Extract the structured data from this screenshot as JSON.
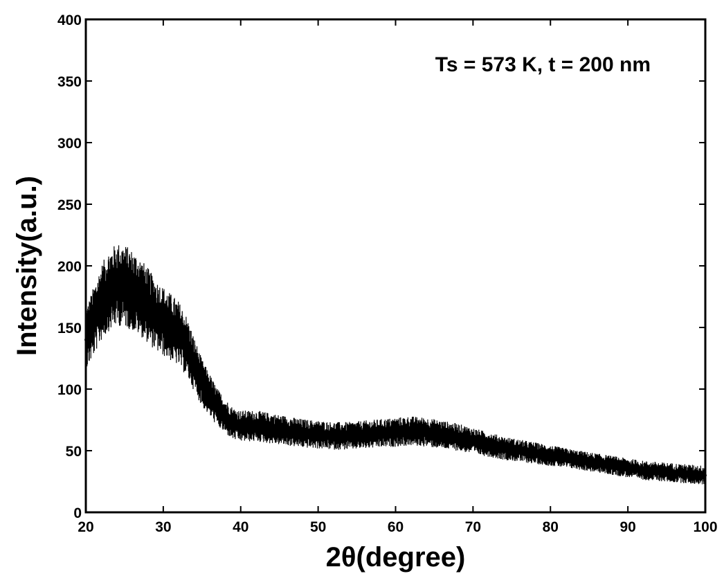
{
  "chart_data": {
    "type": "line",
    "title": "",
    "annotation": "Ts = 573 K, t = 200 nm",
    "xlabel": "2θ(degree)",
    "ylabel": "Intensity(a.u.)",
    "xlim": [
      20,
      100
    ],
    "ylim": [
      0,
      400
    ],
    "xticks": [
      20,
      30,
      40,
      50,
      60,
      70,
      80,
      90,
      100
    ],
    "yticks": [
      0,
      50,
      100,
      150,
      200,
      250,
      300,
      350,
      400
    ],
    "grid": false,
    "legend": "none",
    "series": [
      {
        "color": "#000000",
        "note_style": "noisy XRD trace",
        "x": [
          20,
          21,
          22,
          23,
          24,
          25,
          26,
          27,
          28,
          29,
          30,
          31,
          32,
          33,
          34,
          35,
          36,
          37,
          38,
          39,
          40,
          42,
          44,
          46,
          48,
          50,
          52,
          54,
          56,
          58,
          60,
          62,
          64,
          66,
          68,
          70,
          72,
          74,
          76,
          78,
          80,
          82,
          84,
          86,
          88,
          90,
          92,
          94,
          96,
          98,
          100
        ],
        "y": [
          140,
          155,
          170,
          180,
          185,
          184,
          180,
          175,
          168,
          160,
          155,
          150,
          145,
          135,
          120,
          105,
          95,
          85,
          78,
          72,
          70,
          70,
          68,
          66,
          64,
          63,
          62,
          62,
          63,
          64,
          65,
          66,
          65,
          63,
          61,
          58,
          55,
          52,
          50,
          48,
          46,
          44,
          42,
          40,
          38,
          36,
          34,
          33,
          32,
          31,
          30
        ]
      }
    ]
  }
}
